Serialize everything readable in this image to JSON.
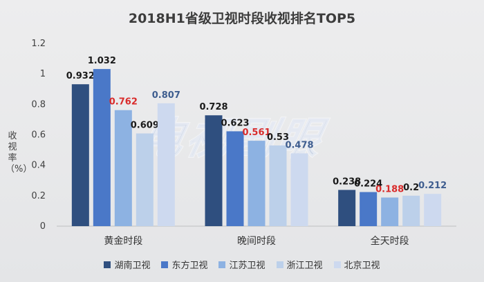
{
  "chart_data": {
    "type": "bar",
    "title": "2018H1省级卫视时段收视排名TOP5",
    "ylabel": "收视率（%）",
    "xlabel": "",
    "ylim": [
      0,
      1.2
    ],
    "yticks": [
      "0",
      "0.2",
      "0.4",
      "0.6",
      "0.8",
      "1",
      "1.2"
    ],
    "categories": [
      "黄金时段",
      "晚间时段",
      "全天时段"
    ],
    "series": [
      {
        "name": "湖南卫视",
        "color": "#2f4f7f",
        "label_color": "#1a1a1a",
        "values": [
          0.932,
          0.728,
          0.238
        ]
      },
      {
        "name": "东方卫视",
        "color": "#4a78c8",
        "label_color": "#1a1a1a",
        "values": [
          1.032,
          0.623,
          0.224
        ]
      },
      {
        "name": "江苏卫视",
        "color": "#8db2e2",
        "label_color": "#d92b2b",
        "values": [
          0.762,
          0.561,
          0.188
        ]
      },
      {
        "name": "浙江卫视",
        "color": "#bcd0ea",
        "label_color": "#1a1a1a",
        "values": [
          0.609,
          0.53,
          0.2
        ]
      },
      {
        "name": "北京卫视",
        "color": "#cdd9ef",
        "label_color": "#3e5d8f",
        "values": [
          0.807,
          0.478,
          0.212
        ]
      }
    ],
    "data_labels": [
      [
        "0.932",
        "0.728",
        "0.238"
      ],
      [
        "1.032",
        "0.623",
        "0.224"
      ],
      [
        "0.762",
        "0.561",
        "0.188"
      ],
      [
        "0.609",
        "0.53",
        "0.2"
      ],
      [
        "0.807",
        "0.478",
        "0.212"
      ]
    ],
    "grid": false,
    "legend": "bottom"
  },
  "watermark": "电视剧眼"
}
